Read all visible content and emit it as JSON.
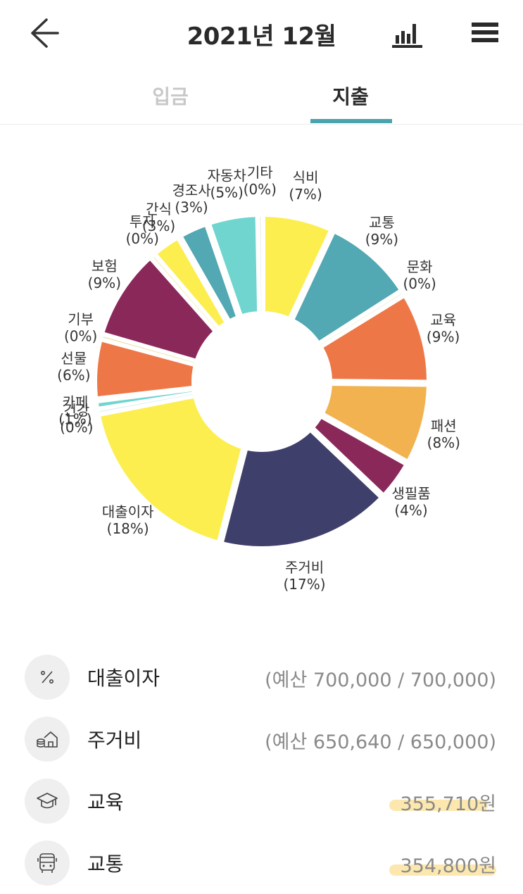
{
  "header": {
    "back_icon": "arrow-left-icon",
    "title": "2021년 12월",
    "chart_icon": "bar-chart-icon",
    "menu_icon": "hamburger-menu-icon"
  },
  "tabs": [
    {
      "label": "입금",
      "active": false
    },
    {
      "label": "지출",
      "active": true
    }
  ],
  "colors": {
    "accent": "#4aa3ad",
    "yellow": "#fcee4e",
    "teal": "#52a8b3",
    "orange": "#ee7748",
    "light_orange": "#f1b24f",
    "plum": "#8b285a",
    "navy": "#3f3f6c",
    "cyan": "#70d5cf"
  },
  "chart_data": {
    "type": "pie",
    "series": [
      {
        "name": "식비",
        "value": 7,
        "label": "(7%)",
        "color": "#fcee4e"
      },
      {
        "name": "교통",
        "value": 9,
        "label": "(9%)",
        "color": "#52a8b3"
      },
      {
        "name": "문화",
        "value": 0.3,
        "label": "(0%)",
        "color": "#f2efc9"
      },
      {
        "name": "교육",
        "value": 9,
        "label": "(9%)",
        "color": "#ee7748"
      },
      {
        "name": "패션",
        "value": 8,
        "label": "(8%)",
        "color": "#f1b24f"
      },
      {
        "name": "생필품",
        "value": 4,
        "label": "(4%)",
        "color": "#8b285a"
      },
      {
        "name": "주거비",
        "value": 17,
        "label": "(17%)",
        "color": "#3f3f6c"
      },
      {
        "name": "대출이자",
        "value": 18,
        "label": "(18%)",
        "color": "#fcee4e"
      },
      {
        "name": "건강",
        "value": 0.3,
        "label": "(0%)",
        "color": "#cfe9ee"
      },
      {
        "name": "카페",
        "value": 1,
        "label": "(1%)",
        "color": "#70d5cf"
      },
      {
        "name": "선물",
        "value": 6,
        "label": "(6%)",
        "color": "#ee7748"
      },
      {
        "name": "기부",
        "value": 0.3,
        "label": "(0%)",
        "color": "#e6d57a"
      },
      {
        "name": "보험",
        "value": 9,
        "label": "(9%)",
        "color": "#8b285a"
      },
      {
        "name": "투자",
        "value": 0.3,
        "label": "(0%)",
        "color": "#f4ea9c"
      },
      {
        "name": "간식",
        "value": 3,
        "label": "(3%)",
        "color": "#fcee4e"
      },
      {
        "name": "경조사",
        "value": 3,
        "label": "(3%)",
        "color": "#52a8b3"
      },
      {
        "name": "자동차",
        "value": 5,
        "label": "(5%)",
        "color": "#70d5cf"
      },
      {
        "name": "기타",
        "value": 0.3,
        "label": "(0%)",
        "color": "#e8e8e8"
      }
    ]
  },
  "list": [
    {
      "name": "대출이자",
      "amount": "(예산 700,000 / 700,000)",
      "icon": "percent-icon",
      "highlight": false
    },
    {
      "name": "주거비",
      "amount": "(예산 650,640 / 650,000)",
      "icon": "house-coins-icon",
      "highlight": false
    },
    {
      "name": "교육",
      "amount": "355,710원",
      "icon": "graduation-cap-icon",
      "highlight": true
    },
    {
      "name": "교통",
      "amount": "354,800원",
      "icon": "bus-icon",
      "highlight": true
    }
  ]
}
